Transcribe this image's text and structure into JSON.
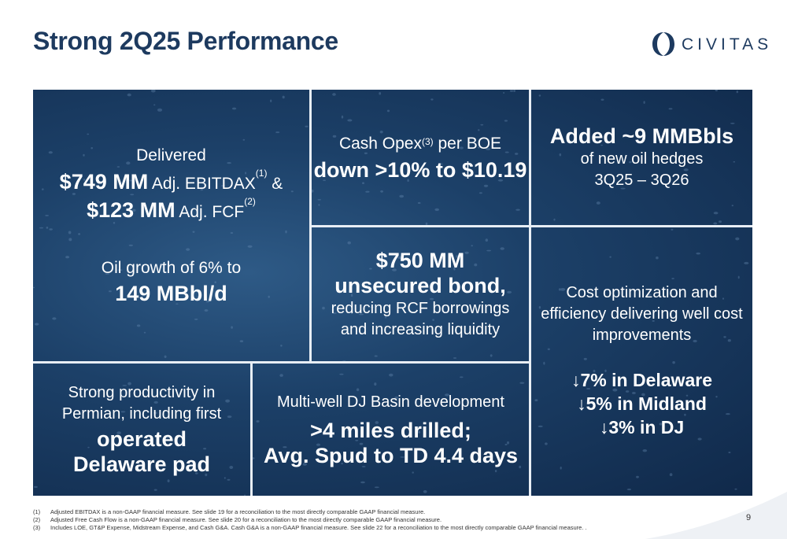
{
  "title": "Strong 2Q25 Performance",
  "logo": {
    "text": "CIVITAS",
    "icon": "civitas-logo-mark",
    "brand_color": "#1d3a5f"
  },
  "colors": {
    "panel_dark": "#10294a",
    "panel_mid": "#2e5a86",
    "divider": "#e8eef5",
    "title": "#1d3a5f"
  },
  "cells": {
    "ebitdax": {
      "line1": "Delivered",
      "ebitdax_value": "$749 MM",
      "ebitdax_label": " Adj. EBITDAX",
      "ebitdax_ref": "(1)",
      "amp": " &",
      "fcf_value": "$123 MM",
      "fcf_label": " Adj. FCF",
      "fcf_ref": "(2)",
      "oil_line": "Oil growth of 6% to",
      "oil_value": "149 MBbl/d"
    },
    "opex": {
      "line1_pre": "Cash Opex",
      "line1_ref": "(3)",
      "line1_post": " per BOE",
      "headline": "down >10% to $10.19"
    },
    "hedges": {
      "headline": "Added ~9 MMBbls",
      "line2": "of new oil hedges",
      "line3": "3Q25 – 3Q26"
    },
    "bond": {
      "headline1": "$750 MM",
      "headline2": "unsecured bond,",
      "line3": "reducing RCF borrowings",
      "line4": "and increasing liquidity"
    },
    "cost": {
      "line1": "Cost optimization and",
      "line2": "efficiency delivering well cost",
      "line3": "improvements",
      "item1": "↓7% in Delaware",
      "item2": "↓5% in Midland",
      "item3": "↓3% in DJ"
    },
    "permian": {
      "line1": "Strong productivity in",
      "line2": "Permian,  including first",
      "headline1": "operated",
      "headline2": "Delaware pad"
    },
    "dj": {
      "line1": "Multi-well DJ Basin development",
      "headline1": ">4 miles drilled;",
      "headline2": "Avg. Spud to TD 4.4 days"
    }
  },
  "footnotes": [
    {
      "num": "(1)",
      "text": "Adjusted EBITDAX is a non-GAAP financial measure. See slide 19 for a reconciliation to the most directly comparable GAAP financial measure."
    },
    {
      "num": "(2)",
      "text": "Adjusted Free Cash Flow is a non-GAAP financial measure. See slide 20 for a reconciliation to the most directly comparable GAAP financial measure."
    },
    {
      "num": "(3)",
      "text": "Includes LOE, GT&P Expense, Midstream Expense, and Cash G&A. Cash G&A is a non-GAAP financial measure. See slide 22 for a reconciliation to the most directly comparable GAAP financial measure. ."
    }
  ],
  "page_number": "9"
}
